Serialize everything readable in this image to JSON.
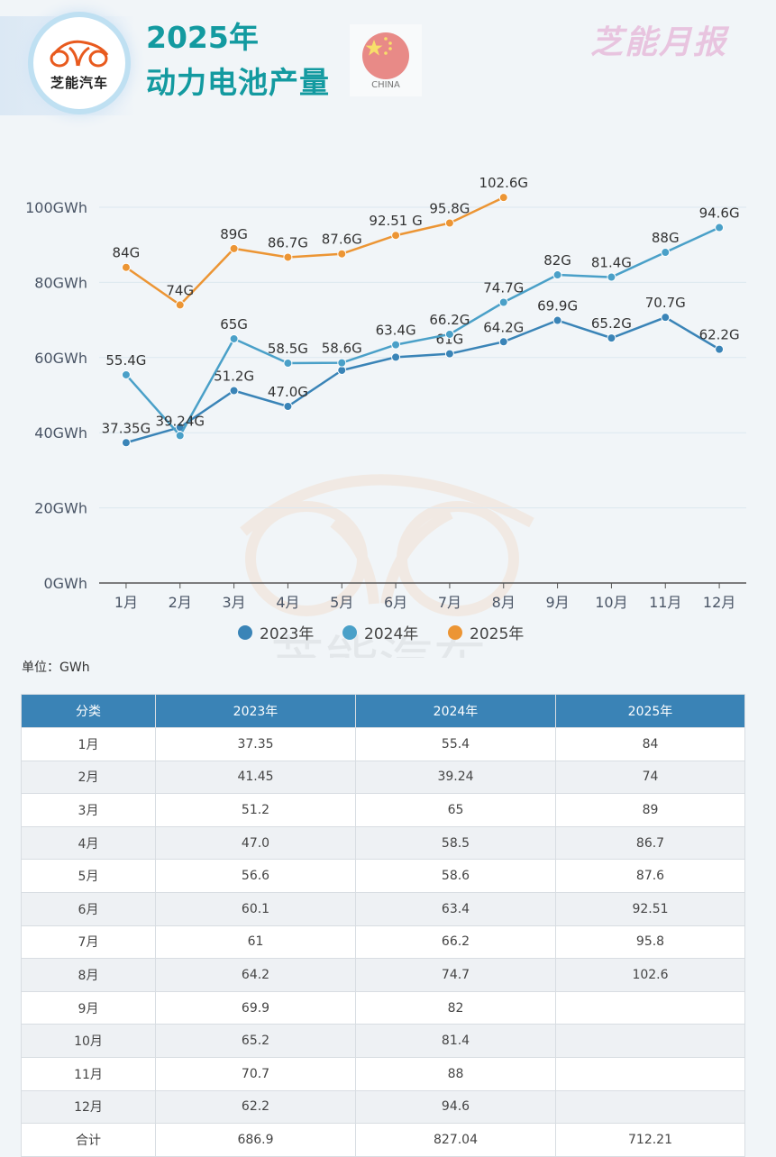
{
  "header": {
    "logo_text": "芝能汽车",
    "title_line1": "2025年",
    "title_line2": "动力电池产量",
    "flag_label": "CHINA",
    "brand": "芝能月报"
  },
  "watermark": "芝能汽车",
  "unit_label": "单位：GWh",
  "colors": {
    "series_2023": "#3a84b7",
    "series_2024": "#4aa0c8",
    "series_2025": "#ec9534",
    "title": "#139aa0",
    "table_header": "#3a83b6"
  },
  "chart_data": {
    "type": "line",
    "title": "2025年 动力电池产量",
    "xlabel": "",
    "ylabel": "",
    "categories": [
      "1月",
      "2月",
      "3月",
      "4月",
      "5月",
      "6月",
      "7月",
      "8月",
      "9月",
      "10月",
      "11月",
      "12月"
    ],
    "ylim": [
      0,
      110
    ],
    "yticks": [
      0,
      20,
      40,
      60,
      80,
      100
    ],
    "ytick_labels": [
      "0GWh",
      "20GWh",
      "40GWh",
      "60GWh",
      "80GWh",
      "100GWh"
    ],
    "grid": true,
    "legend_position": "bottom",
    "series": [
      {
        "name": "2023年",
        "color": "#3a84b7",
        "values": [
          37.35,
          41.45,
          51.2,
          47.0,
          56.6,
          60.1,
          61,
          64.2,
          69.9,
          65.2,
          70.7,
          62.2
        ],
        "labels": [
          "37.35G",
          null,
          "51.2G",
          "47.0G",
          null,
          null,
          "61G",
          "64.2G",
          "69.9G",
          "65.2G",
          "70.7G",
          "62.2G"
        ]
      },
      {
        "name": "2024年",
        "color": "#4aa0c8",
        "values": [
          55.4,
          39.24,
          65,
          58.5,
          58.6,
          63.4,
          66.2,
          74.7,
          82,
          81.4,
          88,
          94.6
        ],
        "labels": [
          "55.4G",
          "39.24G",
          "65G",
          "58.5G",
          "58.6G",
          "63.4G",
          "66.2G",
          "74.7G",
          "82G",
          "81.4G",
          "88G",
          "94.6G"
        ]
      },
      {
        "name": "2025年",
        "color": "#ec9534",
        "values": [
          84,
          74,
          89,
          86.7,
          87.6,
          92.51,
          95.8,
          102.6,
          null,
          null,
          null,
          null
        ],
        "labels": [
          "84G",
          "74G",
          "89G",
          "86.7G",
          "87.6G",
          "92.51 G",
          "95.8G",
          "102.6G",
          null,
          null,
          null,
          null
        ]
      }
    ]
  },
  "table": {
    "headers": [
      "分类",
      "2023年",
      "2024年",
      "2025年"
    ],
    "rows": [
      [
        "1月",
        "37.35",
        "55.4",
        "84"
      ],
      [
        "2月",
        "41.45",
        "39.24",
        "74"
      ],
      [
        "3月",
        "51.2",
        "65",
        "89"
      ],
      [
        "4月",
        "47.0",
        "58.5",
        "86.7"
      ],
      [
        "5月",
        "56.6",
        "58.6",
        "87.6"
      ],
      [
        "6月",
        "60.1",
        "63.4",
        "92.51"
      ],
      [
        "7月",
        "61",
        "66.2",
        "95.8"
      ],
      [
        "8月",
        "64.2",
        "74.7",
        "102.6"
      ],
      [
        "9月",
        "69.9",
        "82",
        ""
      ],
      [
        "10月",
        "65.2",
        "81.4",
        ""
      ],
      [
        "11月",
        "70.7",
        "88",
        ""
      ],
      [
        "12月",
        "62.2",
        "94.6",
        ""
      ],
      [
        "合计",
        "686.9",
        "827.04",
        "712.21"
      ]
    ]
  }
}
